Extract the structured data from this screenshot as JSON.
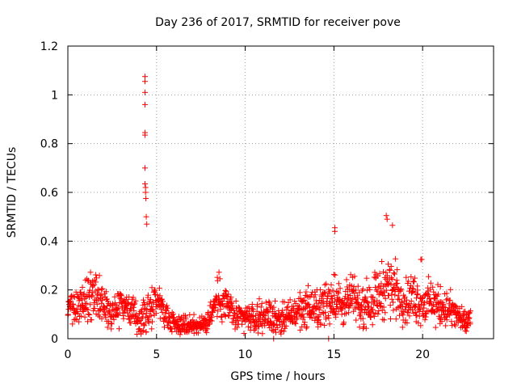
{
  "chart_data": {
    "type": "scatter",
    "title": "Day 236 of 2017, SRMTID for receiver pove",
    "xlabel": "GPS time / hours",
    "ylabel": "SRMTID / TECUs",
    "xlim": [
      0,
      24
    ],
    "ylim": [
      0,
      1.2
    ],
    "x_ticks": [
      0,
      5,
      10,
      15,
      20
    ],
    "x_tick_labels": [
      "0",
      "5",
      "10",
      "15",
      "20"
    ],
    "y_ticks": [
      0,
      0.2,
      0.4,
      0.6,
      0.8,
      1.0,
      1.2
    ],
    "y_tick_labels": [
      "0",
      "0.2",
      "0.4",
      "0.6",
      "0.8",
      "1",
      "1.2"
    ],
    "grid": true,
    "marker": "+",
    "series": [
      {
        "name": "SRMTID",
        "color": "#ff0000",
        "envelope": {
          "description": "approximate local baseline and spread of the dense point cloud (hours, TECU)",
          "x": [
            0.0,
            0.5,
            1.0,
            1.5,
            2.0,
            2.5,
            3.0,
            3.5,
            4.0,
            4.5,
            5.0,
            5.5,
            6.0,
            6.5,
            7.0,
            7.5,
            8.0,
            8.5,
            9.0,
            9.5,
            10.0,
            10.5,
            11.0,
            11.5,
            12.0,
            12.5,
            13.0,
            13.5,
            14.0,
            14.5,
            15.0,
            15.5,
            16.0,
            16.5,
            17.0,
            17.5,
            18.0,
            18.5,
            19.0,
            19.5,
            20.0,
            20.5,
            21.0,
            21.5,
            22.0,
            22.5,
            22.7
          ],
          "center": [
            0.13,
            0.12,
            0.17,
            0.18,
            0.13,
            0.12,
            0.15,
            0.12,
            0.07,
            0.1,
            0.18,
            0.1,
            0.07,
            0.05,
            0.06,
            0.05,
            0.09,
            0.17,
            0.14,
            0.08,
            0.09,
            0.08,
            0.1,
            0.09,
            0.08,
            0.09,
            0.12,
            0.13,
            0.12,
            0.14,
            0.18,
            0.13,
            0.17,
            0.13,
            0.15,
            0.18,
            0.22,
            0.2,
            0.15,
            0.17,
            0.14,
            0.15,
            0.13,
            0.12,
            0.09,
            0.06,
            0.08
          ],
          "spread": [
            0.06,
            0.07,
            0.09,
            0.09,
            0.07,
            0.07,
            0.07,
            0.06,
            0.05,
            0.07,
            0.07,
            0.05,
            0.04,
            0.04,
            0.04,
            0.03,
            0.05,
            0.08,
            0.07,
            0.05,
            0.05,
            0.05,
            0.06,
            0.06,
            0.05,
            0.06,
            0.07,
            0.07,
            0.07,
            0.08,
            0.1,
            0.07,
            0.08,
            0.07,
            0.09,
            0.1,
            0.11,
            0.1,
            0.08,
            0.09,
            0.08,
            0.08,
            0.07,
            0.07,
            0.05,
            0.04,
            0.05
          ]
        },
        "notable_points": {
          "x": [
            4.35,
            4.35,
            4.35,
            4.35,
            4.35,
            4.35,
            4.35,
            4.35,
            4.38,
            4.38,
            4.4,
            4.42,
            4.45,
            15.05,
            15.05,
            17.95,
            18.0,
            18.3,
            19.9,
            19.95,
            11.6,
            14.7
          ],
          "y": [
            1.075,
            1.055,
            1.01,
            0.96,
            0.845,
            0.835,
            0.7,
            0.635,
            0.62,
            0.6,
            0.575,
            0.5,
            0.47,
            0.455,
            0.44,
            0.505,
            0.49,
            0.465,
            0.325,
            0.325,
            0.0,
            0.0
          ]
        }
      }
    ]
  }
}
